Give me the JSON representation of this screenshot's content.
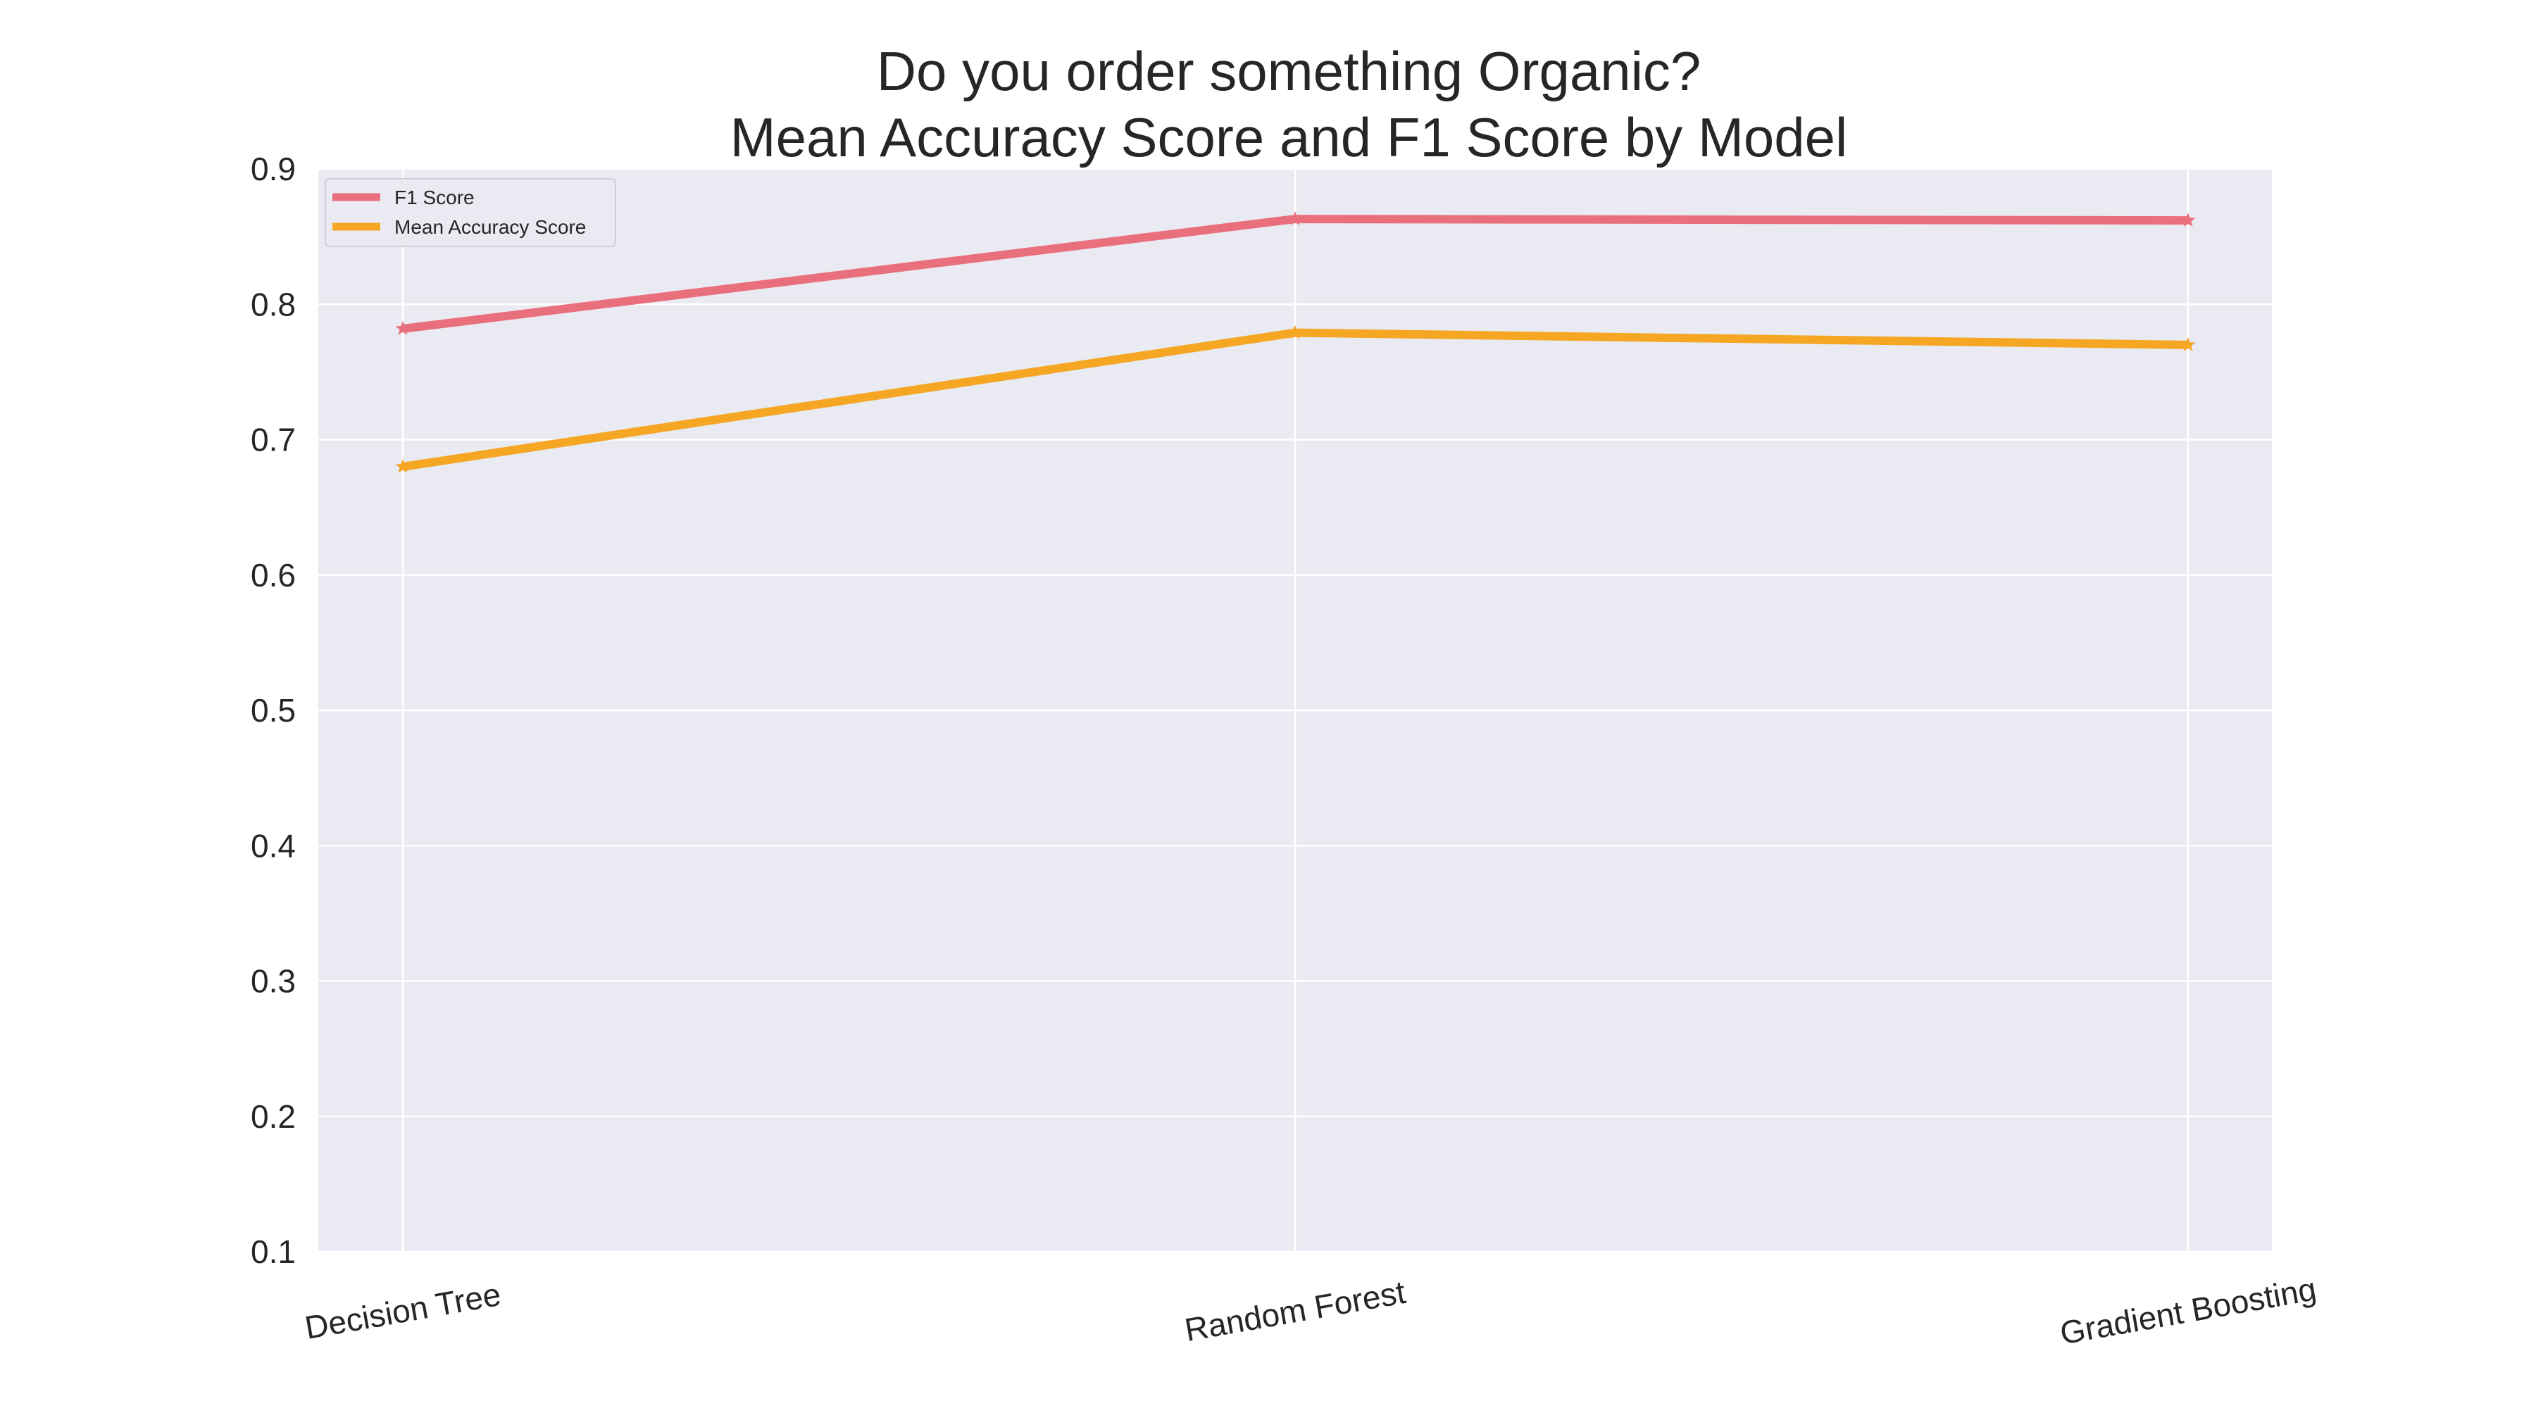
{
  "chart_data": {
    "type": "line",
    "title": [
      "Do you order something Organic?",
      "Mean Accuracy Score and F1 Score by Model"
    ],
    "xlabel": "",
    "ylabel": "",
    "categories": [
      "Decision Tree",
      "Random Forest",
      "Gradient Boosting"
    ],
    "series": [
      {
        "name": "F1 Score",
        "values": [
          0.782,
          0.863,
          0.862
        ],
        "color": "#ea6f7c",
        "marker": "star"
      },
      {
        "name": "Mean Accuracy Score",
        "values": [
          0.68,
          0.779,
          0.77
        ],
        "color": "#f5a623",
        "marker": "star"
      }
    ],
    "ylim": [
      0.1,
      0.9
    ],
    "yticks": [
      "0.1",
      "0.2",
      "0.3",
      "0.4",
      "0.5",
      "0.6",
      "0.7",
      "0.8",
      "0.9"
    ],
    "grid": true,
    "legend_position": "top-left",
    "background": "#eaeaf2"
  }
}
